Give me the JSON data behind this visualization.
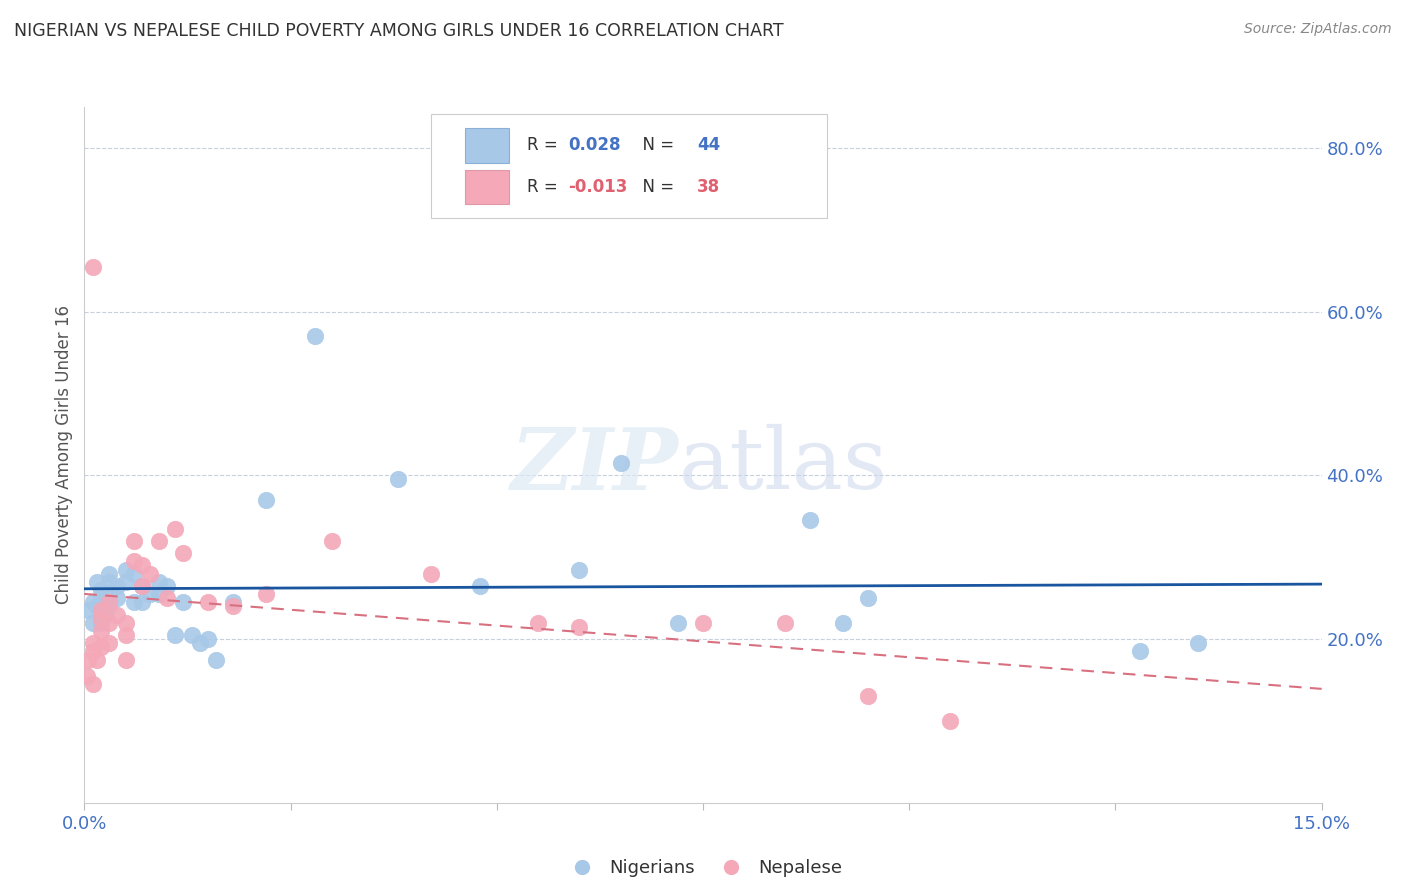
{
  "title": "NIGERIAN VS NEPALESE CHILD POVERTY AMONG GIRLS UNDER 16 CORRELATION CHART",
  "source": "Source: ZipAtlas.com",
  "ylabel": "Child Poverty Among Girls Under 16",
  "xlim": [
    0.0,
    0.15
  ],
  "ylim": [
    0.0,
    0.85
  ],
  "xticks": [
    0.0,
    0.025,
    0.05,
    0.075,
    0.1,
    0.125,
    0.15
  ],
  "xtick_labels": [
    "0.0%",
    "",
    "",
    "",
    "",
    "",
    "15.0%"
  ],
  "yticks_right": [
    0.2,
    0.4,
    0.6,
    0.8
  ],
  "ytick_labels_right": [
    "20.0%",
    "40.0%",
    "60.0%",
    "80.0%"
  ],
  "nigerian_color": "#a8c8e8",
  "nepalese_color": "#f4a8b8",
  "nigerian_line_color": "#1a55a0",
  "nepalese_line_color": "#d87080",
  "legend_R_nigerian": "0.028",
  "legend_N_nigerian": "44",
  "legend_R_nepalese": "-0.013",
  "legend_N_nepalese": "38",
  "nigerians_x": [
    0.0005,
    0.001,
    0.001,
    0.0015,
    0.0015,
    0.002,
    0.002,
    0.002,
    0.0025,
    0.003,
    0.003,
    0.003,
    0.003,
    0.004,
    0.004,
    0.005,
    0.005,
    0.006,
    0.006,
    0.007,
    0.007,
    0.008,
    0.009,
    0.009,
    0.01,
    0.011,
    0.012,
    0.013,
    0.014,
    0.015,
    0.016,
    0.018,
    0.022,
    0.028,
    0.038,
    0.048,
    0.06,
    0.065,
    0.072,
    0.088,
    0.092,
    0.095,
    0.128,
    0.135
  ],
  "nigerians_y": [
    0.235,
    0.245,
    0.22,
    0.24,
    0.27,
    0.22,
    0.25,
    0.26,
    0.23,
    0.24,
    0.25,
    0.27,
    0.28,
    0.25,
    0.265,
    0.27,
    0.285,
    0.245,
    0.28,
    0.245,
    0.265,
    0.255,
    0.255,
    0.27,
    0.265,
    0.205,
    0.245,
    0.205,
    0.195,
    0.2,
    0.175,
    0.245,
    0.37,
    0.57,
    0.395,
    0.265,
    0.285,
    0.415,
    0.22,
    0.345,
    0.22,
    0.25,
    0.185,
    0.195
  ],
  "nepalese_x": [
    0.0003,
    0.0005,
    0.001,
    0.001,
    0.001,
    0.001,
    0.0015,
    0.002,
    0.002,
    0.002,
    0.002,
    0.003,
    0.003,
    0.003,
    0.004,
    0.005,
    0.005,
    0.005,
    0.006,
    0.006,
    0.007,
    0.007,
    0.008,
    0.009,
    0.01,
    0.011,
    0.012,
    0.015,
    0.018,
    0.022,
    0.03,
    0.042,
    0.055,
    0.06,
    0.075,
    0.085,
    0.095,
    0.105
  ],
  "nepalese_y": [
    0.155,
    0.175,
    0.145,
    0.185,
    0.195,
    0.655,
    0.175,
    0.19,
    0.21,
    0.225,
    0.235,
    0.195,
    0.22,
    0.245,
    0.23,
    0.175,
    0.205,
    0.22,
    0.295,
    0.32,
    0.265,
    0.29,
    0.28,
    0.32,
    0.25,
    0.335,
    0.305,
    0.245,
    0.24,
    0.255,
    0.32,
    0.28,
    0.22,
    0.215,
    0.22,
    0.22,
    0.13,
    0.1
  ],
  "background_color": "#ffffff",
  "grid_color": "#c8d0dc",
  "blue_text_color": "#4472c4",
  "pink_text_color": "#e06070"
}
